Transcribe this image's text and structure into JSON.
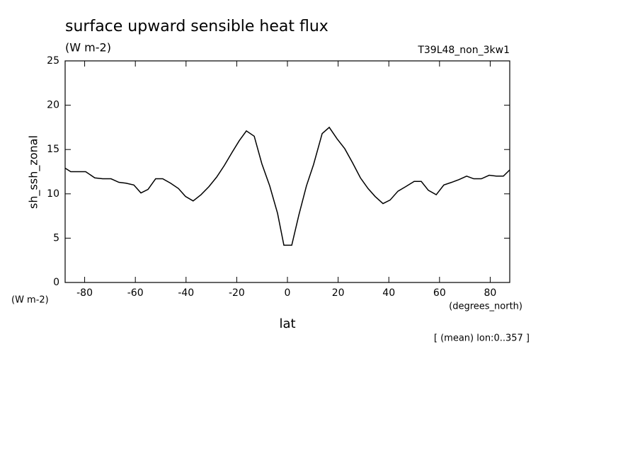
{
  "chart_data": {
    "type": "line",
    "title": "surface upward sensible heat flux",
    "subtitle": "(W m-2)",
    "run_label": "T39L48_non_3kw1",
    "y_label": "sh_ssh_zonal",
    "y_units": "(W m-2)",
    "x_label": "lat",
    "x_units": "(degrees_north)",
    "note": "[ (mean) lon:0..357 ]",
    "x": [
      -87.7,
      -85.5,
      -82.7,
      -79.6,
      -76.0,
      -72.9,
      -69.6,
      -66.5,
      -63.7,
      -60.6,
      -57.8,
      -55.0,
      -52.0,
      -49.2,
      -46.1,
      -43.0,
      -40.2,
      -37.2,
      -34.1,
      -31.0,
      -27.9,
      -24.9,
      -21.8,
      -19.0,
      -16.2,
      -13.1,
      -10.1,
      -7.0,
      -3.9,
      -1.4,
      1.7,
      4.5,
      7.5,
      10.3,
      13.7,
      16.5,
      19.6,
      22.6,
      25.7,
      28.8,
      31.8,
      34.6,
      37.7,
      40.5,
      43.6,
      46.6,
      50.0,
      52.8,
      55.6,
      58.7,
      61.7,
      64.8,
      67.6,
      70.7,
      73.5,
      76.5,
      79.6,
      82.4,
      85.2,
      87.7
    ],
    "series": [
      {
        "color": "#000000",
        "values": [
          12.9,
          12.5,
          12.5,
          12.5,
          11.8,
          11.7,
          11.7,
          11.3,
          11.2,
          11.0,
          10.1,
          10.5,
          11.7,
          11.7,
          11.2,
          10.6,
          9.7,
          9.2,
          9.9,
          10.8,
          11.9,
          13.2,
          14.7,
          16.0,
          17.1,
          16.5,
          13.4,
          10.9,
          7.8,
          4.2,
          4.2,
          7.6,
          10.9,
          13.3,
          16.8,
          17.5,
          16.2,
          15.1,
          13.5,
          11.8,
          10.6,
          9.7,
          8.9,
          9.3,
          10.3,
          10.8,
          11.4,
          11.4,
          10.4,
          9.9,
          11.0,
          11.3,
          11.6,
          12.0,
          11.7,
          11.7,
          12.1,
          12.0,
          12.0,
          12.7
        ]
      }
    ],
    "xlim": [
      -87.7,
      87.7
    ],
    "xticks": [
      -80,
      -60,
      -40,
      -20,
      0,
      20,
      40,
      60,
      80
    ],
    "ylim": [
      0,
      25
    ],
    "yticks": [
      0,
      5,
      10,
      15,
      20,
      25
    ],
    "grid": false
  }
}
